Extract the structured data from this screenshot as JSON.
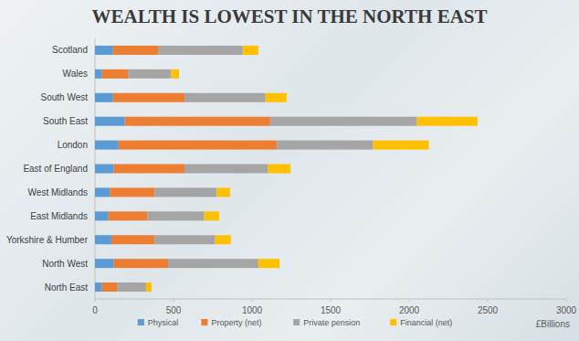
{
  "chart_data": {
    "type": "bar",
    "orientation": "horizontal",
    "stacked": true,
    "title": "WEALTH IS LOWEST IN THE NORTH EAST",
    "x_label": "£Billions",
    "categories": [
      "Scotland",
      "Wales",
      "South West",
      "South East",
      "London",
      "East of England",
      "West Midlands",
      "East Midlands",
      "Yorkshire & Humber",
      "North West",
      "North East"
    ],
    "series": [
      {
        "name": "Physical",
        "color": "#5b9bd5",
        "values": [
          115,
          45,
          115,
          190,
          150,
          120,
          95,
          85,
          105,
          120,
          45
        ]
      },
      {
        "name": "Property (net)",
        "color": "#ed7d31",
        "values": [
          290,
          165,
          455,
          925,
          1010,
          450,
          285,
          250,
          275,
          345,
          95
        ]
      },
      {
        "name": "Private pension",
        "color": "#a5a5a5",
        "values": [
          535,
          275,
          515,
          935,
          610,
          530,
          395,
          360,
          385,
          575,
          185
        ]
      },
      {
        "name": "Financial (net)",
        "color": "#ffc000",
        "values": [
          100,
          50,
          135,
          385,
          355,
          145,
          85,
          95,
          100,
          135,
          35
        ]
      }
    ],
    "xlim": [
      0,
      3000
    ],
    "xticks": [
      0,
      500,
      1000,
      1500,
      2000,
      2500,
      3000
    ],
    "grid": false,
    "legend": "bottom"
  }
}
